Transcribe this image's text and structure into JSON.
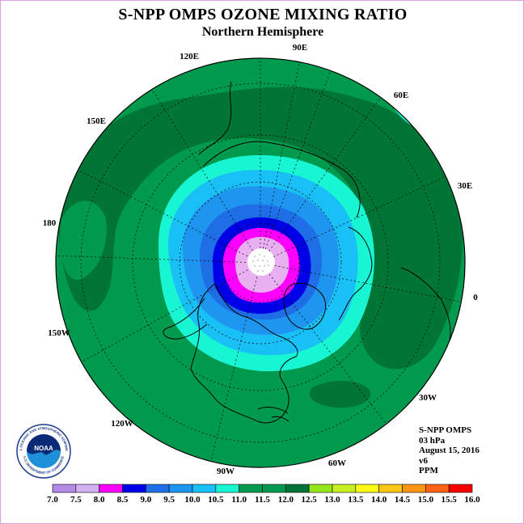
{
  "header": {
    "title": "S-NPP OMPS OZONE MIXING RATIO",
    "subtitle": "Northern Hemisphere"
  },
  "map": {
    "projection": "north polar stereographic",
    "longitude_labels": [
      "90E",
      "60E",
      "30E",
      "0",
      "30W",
      "60W",
      "90W",
      "120W",
      "150W",
      "180",
      "150E",
      "120E"
    ],
    "ozone_levels_ppm": [
      {
        "level": "north pole",
        "color": "#ffffff"
      },
      {
        "level": "8.0-8.5",
        "color": "#e8b0f0"
      },
      {
        "level": "8.5-9.0",
        "color": "#ff00ff"
      },
      {
        "level": "9.0-9.5",
        "color": "#0000e6"
      },
      {
        "level": "9.5-10.0",
        "color": "#1e6ee6"
      },
      {
        "level": "10.0-10.5",
        "color": "#1e96f0"
      },
      {
        "level": "10.5-11.0",
        "color": "#18c0f5"
      },
      {
        "level": "11.0-11.5",
        "color": "#18f5d2"
      },
      {
        "level": "11.5-12.0",
        "color": "#009a4e"
      },
      {
        "level": "12.0-12.5",
        "color": "#007536"
      }
    ]
  },
  "info": {
    "instrument": "S-NPP OMPS",
    "pressure": "03 hPa",
    "date": "August 15, 2016",
    "version": "v6",
    "units": "PPM"
  },
  "colorbar": {
    "labels": [
      "7.0",
      "7.5",
      "8.0",
      "8.5",
      "9.0",
      "9.5",
      "10.0",
      "10.5",
      "11.0",
      "11.5",
      "12.0",
      "12.5",
      "13.0",
      "13.5",
      "14.0",
      "14.5",
      "15.0",
      "15.5",
      "16.0"
    ],
    "colors": [
      "#b38ae6",
      "#d2b2f0",
      "#ff00ff",
      "#0000e6",
      "#1e6ee6",
      "#1e96f0",
      "#18c0f5",
      "#18f5d2",
      "#009a4e",
      "#009a4e",
      "#007536",
      "#96e61e",
      "#c8f01e",
      "#fafa14",
      "#fac814",
      "#fa9614",
      "#fa6414",
      "#fa0000",
      "#9a5a3c"
    ]
  },
  "logo": {
    "text": "NOAA",
    "ring_text": "NATIONAL OCEANIC AND ATMOSPHERIC ADMINISTRATION",
    "ring_text_bottom": "U.S. DEPARTMENT OF COMMERCE"
  }
}
